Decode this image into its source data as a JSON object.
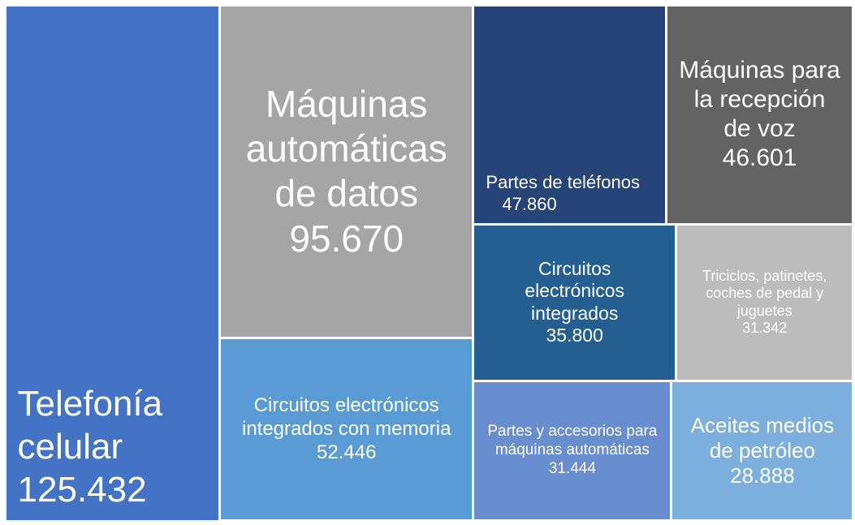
{
  "chart_data": {
    "type": "treemap",
    "categories": [
      "Telefonía celular",
      "Máquinas automáticas de datos",
      "Circuitos electrónicos integrados con memoria",
      "Partes de teléfonos",
      "Máquinas para la recepción de voz",
      "Circuitos electrónicos integrados",
      "Triciclos, patinetes, coches de pedal y juguetes",
      "Partes y accesorios para máquinas automáticas",
      "Aceites medios de petróleo"
    ],
    "values": [
      125432,
      95670,
      52446,
      47860,
      46601,
      35800,
      31342,
      31444,
      28888
    ],
    "value_labels": [
      "125.432",
      "95.670",
      "52.446",
      "47.860",
      "46.601",
      "35.800",
      "31.342",
      "31.444",
      "28.888"
    ],
    "colors": [
      "#4472c4",
      "#a5a5a5",
      "#5b9bd5",
      "#264478",
      "#636363",
      "#255e91",
      "#bcbcbc",
      "#698ed0",
      "#7cafdd"
    ]
  }
}
